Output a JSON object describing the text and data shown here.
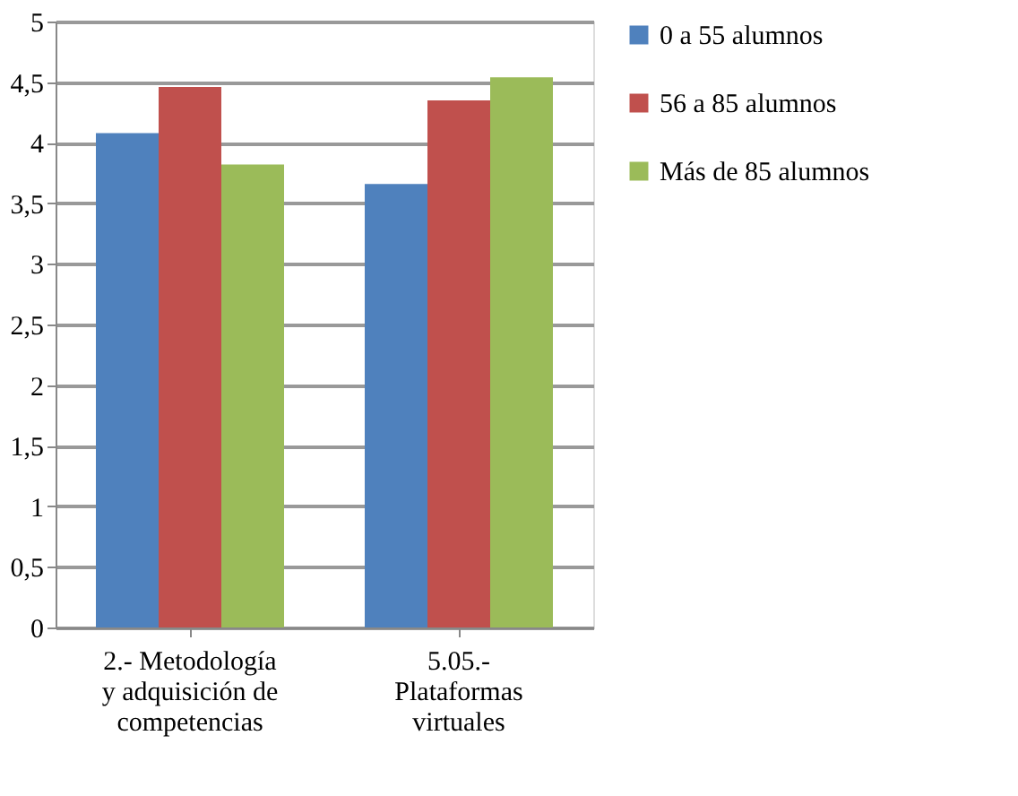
{
  "chart_data": {
    "type": "bar",
    "categories": [
      "2.-  Metodología y adquisición de competencias",
      "5.05.- Plataformas virtuales"
    ],
    "series": [
      {
        "name": "0 a 55 alumnos",
        "color": "#4f81bd",
        "values": [
          4.08,
          3.66
        ]
      },
      {
        "name": "56 a 85 alumnos",
        "color": "#c0504d",
        "values": [
          4.46,
          4.35
        ]
      },
      {
        "name": "Más de 85 alumnos",
        "color": "#9bbb59",
        "values": [
          3.82,
          4.54
        ]
      }
    ],
    "ylim": [
      0,
      5
    ],
    "yticks": [
      0,
      {
        "value": 0.5,
        "label": "0,5"
      },
      1,
      {
        "value": 1.5,
        "label": "1,5"
      },
      2,
      {
        "value": 2.5,
        "label": "2,5"
      },
      3,
      {
        "value": 3.5,
        "label": "3,5"
      },
      4,
      {
        "value": 4.5,
        "label": "4,5"
      },
      5
    ],
    "grid": "y",
    "legend": "right"
  }
}
